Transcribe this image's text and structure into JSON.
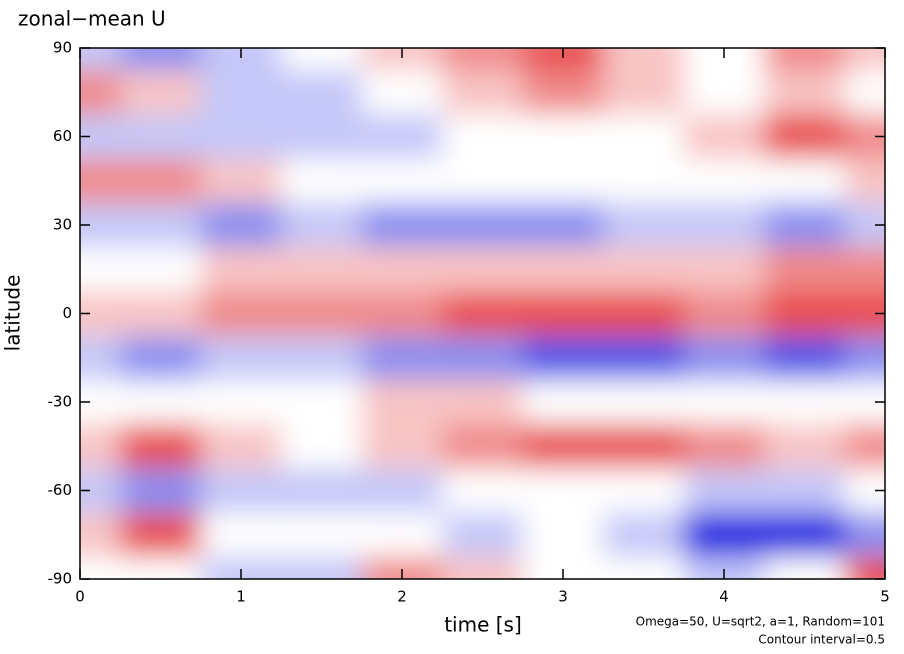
{
  "chart_data": {
    "type": "contour",
    "title": "zonal−mean U",
    "x_label": "time [s]",
    "y_label": "latitude",
    "annotations": [
      "Omega=50, U=sqrt2, a=1, Random=101",
      "Contour interval=0.5"
    ],
    "xlim": [
      0,
      5
    ],
    "ylim": [
      -90,
      90
    ],
    "xticks": [
      0,
      1,
      2,
      3,
      4,
      5
    ],
    "yticks": [
      -90,
      -60,
      -30,
      0,
      30,
      60,
      90
    ],
    "x": [
      0,
      0.5,
      1,
      1.5,
      2,
      2.5,
      3,
      3.5,
      4,
      4.5,
      5
    ],
    "y": [
      90,
      75,
      60,
      45,
      30,
      15,
      0,
      -15,
      -30,
      -45,
      -60,
      -75,
      -90
    ],
    "z": [
      [
        -1,
        -2,
        -1,
        0,
        1,
        2,
        3,
        1,
        0,
        2,
        1
      ],
      [
        2,
        1,
        -1,
        -1,
        0,
        1,
        2,
        1,
        0,
        1,
        0
      ],
      [
        -1,
        -1,
        -1,
        -1,
        -1,
        0,
        0,
        0,
        1,
        3,
        2
      ],
      [
        2,
        2,
        1,
        0,
        0,
        0,
        0,
        0,
        0,
        0,
        1
      ],
      [
        -1,
        -1,
        -2,
        -1,
        -2,
        -2,
        -2,
        -1,
        -1,
        -2,
        -1
      ],
      [
        0,
        0,
        1,
        1,
        1,
        1,
        1,
        1,
        1,
        2,
        2
      ],
      [
        1,
        1,
        2,
        2,
        2,
        3,
        3,
        3,
        2,
        3,
        3
      ],
      [
        -1,
        -2,
        -1,
        -1,
        -2,
        -2,
        -3,
        -3,
        -2,
        -3,
        -2
      ],
      [
        0,
        0,
        0,
        0,
        1,
        1,
        0,
        0,
        0,
        0,
        0
      ],
      [
        1,
        3,
        1,
        0,
        1,
        2,
        3,
        3,
        2,
        1,
        2
      ],
      [
        -1,
        -2,
        -1,
        -1,
        -1,
        0,
        0,
        0,
        -1,
        -1,
        0
      ],
      [
        1,
        3,
        0,
        0,
        0,
        -1,
        0,
        -1,
        -5,
        -4,
        -2
      ],
      [
        0,
        0,
        -1,
        -1,
        2,
        1,
        0,
        0,
        -1,
        0,
        3
      ]
    ]
  }
}
